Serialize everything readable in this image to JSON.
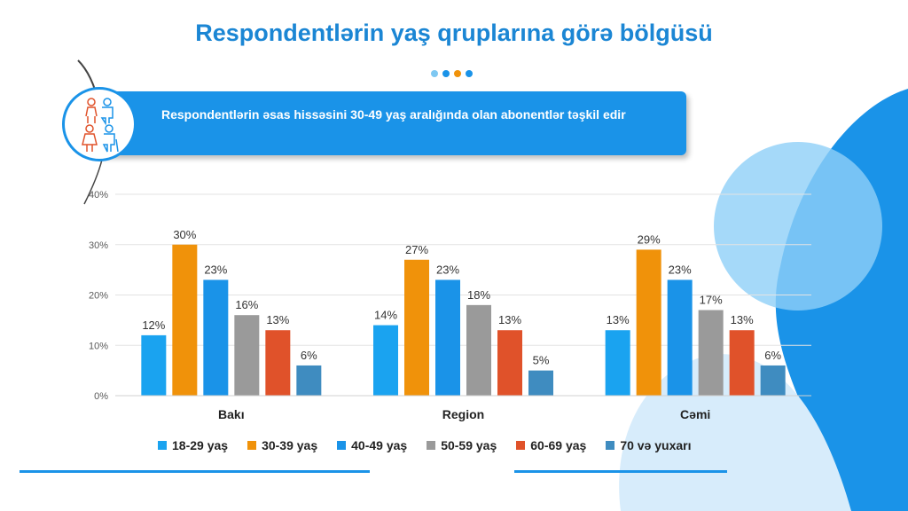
{
  "title": "Respondentlərin yaş qruplarına görə bölgüsü",
  "banner_text": "Respondentlərin əsas hissəsini 30-49 yaş aralığında olan abonentlər təşkil edir",
  "icon": "elderly-people-icon",
  "dot_colors": [
    "#7ec8f2",
    "#1a93e8",
    "#f0920a",
    "#1a93e8"
  ],
  "chart_data": {
    "type": "bar",
    "categories": [
      "Bakı",
      "Region",
      "Cəmi"
    ],
    "yticks": [
      "0%",
      "10%",
      "20%",
      "30%",
      "40%"
    ],
    "ylim": [
      0,
      40
    ],
    "grid": true,
    "legend_position": "bottom",
    "series": [
      {
        "name": "18-29 yaş",
        "color": "#1aa3f0",
        "values": [
          12,
          14,
          13
        ],
        "labels": [
          "12%",
          "14%",
          "13%"
        ]
      },
      {
        "name": "30-39 yaş",
        "color": "#f0920a",
        "values": [
          30,
          27,
          29
        ],
        "labels": [
          "30%",
          "27%",
          "29%"
        ]
      },
      {
        "name": "40-49 yaş",
        "color": "#1a93e8",
        "values": [
          23,
          23,
          23
        ],
        "labels": [
          "23%",
          "23%",
          "23%"
        ]
      },
      {
        "name": "50-59 yaş",
        "color": "#9a9a9a",
        "values": [
          16,
          18,
          17
        ],
        "labels": [
          "16%",
          "18%",
          "17%"
        ]
      },
      {
        "name": "60-69 yaş",
        "color": "#e0522a",
        "values": [
          13,
          13,
          13
        ],
        "labels": [
          "13%",
          "13%",
          "13%"
        ]
      },
      {
        "name": "70 və yuxarı",
        "color": "#3f8cc0",
        "values": [
          6,
          5,
          6
        ],
        "labels": [
          "6%",
          "5%",
          "6%"
        ]
      }
    ]
  }
}
